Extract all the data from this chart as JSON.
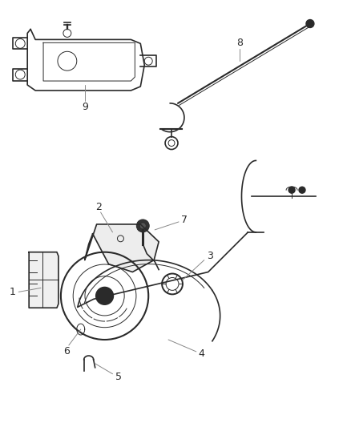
{
  "bg_color": "#ffffff",
  "line_color": "#2a2a2a",
  "label_color": "#2a2a2a",
  "callout_color": "#888888",
  "fig_width": 4.39,
  "fig_height": 5.33,
  "dpi": 100
}
